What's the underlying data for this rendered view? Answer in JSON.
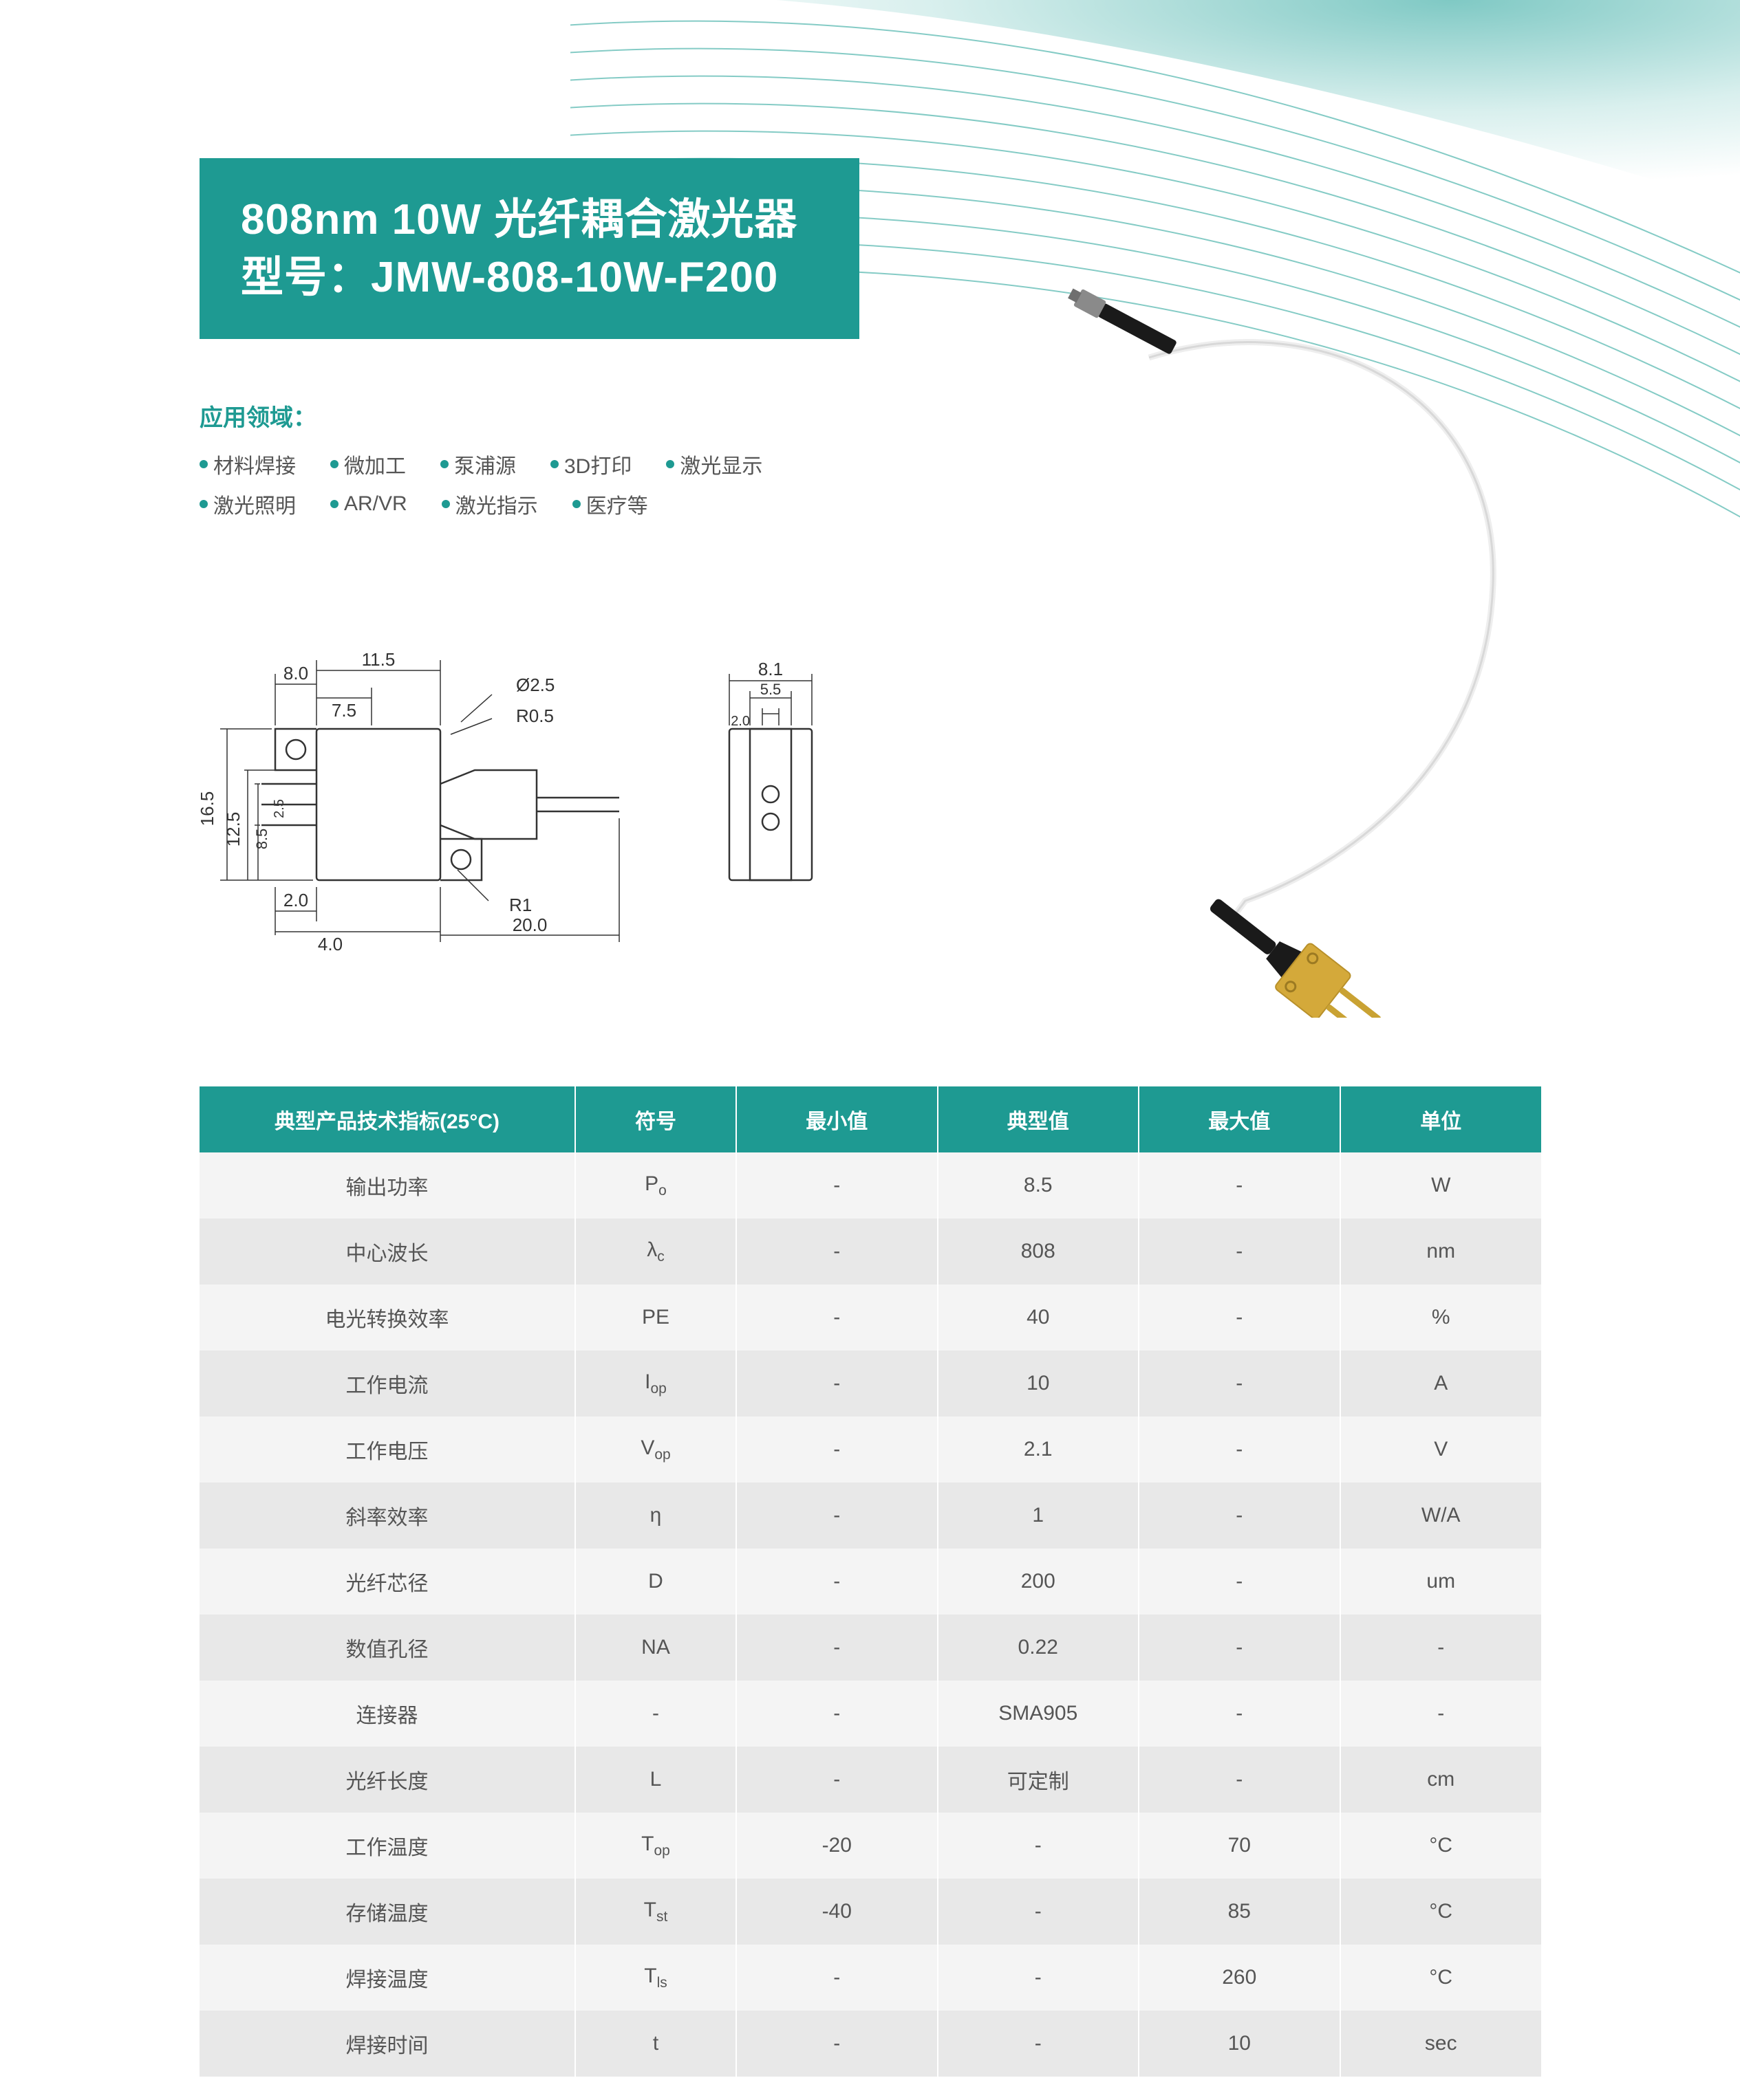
{
  "colors": {
    "brand": "#1e9a92",
    "bg_gradient_inner": "#2aa59d",
    "bg_gradient_outer": "#e8f5f4",
    "curve_line": "#6fc2bc",
    "text_body": "#555555",
    "row_odd": "#f4f4f4",
    "row_even": "#e8e8e8",
    "white": "#ffffff"
  },
  "title": {
    "line1": "808nm 10W 光纤耦合激光器",
    "line2": "型号：JMW-808-10W-F200"
  },
  "applications": {
    "heading": "应用领域：",
    "row1": [
      "材料焊接",
      "微加工",
      "泵浦源",
      "3D打印",
      "激光显示"
    ],
    "row2": [
      "激光照明",
      "AR/VR",
      "激光指示",
      "医疗等"
    ]
  },
  "diagram": {
    "dims": {
      "w1": "8.0",
      "w2": "11.5",
      "w3": "7.5",
      "d1": "Ø2.5",
      "r1": "R0.5",
      "h1": "16.5",
      "h2": "12.5",
      "h3": "8.5",
      "h4": "2.5",
      "b1": "2.0",
      "b2": "4.0",
      "len": "20.0",
      "r2": "R1",
      "side_w1": "8.1",
      "side_w2": "5.5",
      "side_w3": "2.0"
    },
    "line_color": "#333333",
    "fontsize_pt": 22
  },
  "product_image": {
    "description": "fiber-coupled laser module with white fiber loop, black SMA connector, gold base with two pins",
    "fiber_color": "#f2f2f2",
    "connector_color": "#1a1a1a",
    "ferrule_color": "#8a8a8a",
    "base_color": "#d4a93a",
    "pin_color": "#c9a233"
  },
  "table": {
    "headers": [
      "典型产品技术指标(25°C)",
      "符号",
      "最小值",
      "典型值",
      "最大值",
      "单位"
    ],
    "rows": [
      {
        "name": "输出功率",
        "symbol_html": "P<span class='sub'>o</span>",
        "min": "-",
        "typ": "8.5",
        "max": "-",
        "unit": "W"
      },
      {
        "name": "中心波长",
        "symbol_html": "λ<span class='sub'>c</span>",
        "min": "-",
        "typ": "808",
        "max": "-",
        "unit": "nm"
      },
      {
        "name": "电光转换效率",
        "symbol_html": "PE",
        "min": "-",
        "typ": "40",
        "max": "-",
        "unit": "%"
      },
      {
        "name": "工作电流",
        "symbol_html": "I<span class='sub'>op</span>",
        "min": "-",
        "typ": "10",
        "max": "-",
        "unit": "A"
      },
      {
        "name": "工作电压",
        "symbol_html": "V<span class='sub'>op</span>",
        "min": "-",
        "typ": "2.1",
        "max": "-",
        "unit": "V"
      },
      {
        "name": "斜率效率",
        "symbol_html": "η",
        "min": "-",
        "typ": "1",
        "max": "-",
        "unit": "W/A"
      },
      {
        "name": "光纤芯径",
        "symbol_html": "D",
        "min": "-",
        "typ": "200",
        "max": "-",
        "unit": "um"
      },
      {
        "name": "数值孔径",
        "symbol_html": "NA",
        "min": "-",
        "typ": "0.22",
        "max": "-",
        "unit": "-"
      },
      {
        "name": "连接器",
        "symbol_html": "-",
        "min": "-",
        "typ": "SMA905",
        "max": "-",
        "unit": "-"
      },
      {
        "name": "光纤长度",
        "symbol_html": "L",
        "min": "-",
        "typ": "可定制",
        "max": "-",
        "unit": "cm"
      },
      {
        "name": "工作温度",
        "symbol_html": "T<span class='sub'>op</span>",
        "min": "-20",
        "typ": "-",
        "max": "70",
        "unit": "°C"
      },
      {
        "name": "存储温度",
        "symbol_html": "T<span class='sub'>st</span>",
        "min": "-40",
        "typ": "-",
        "max": "85",
        "unit": "°C"
      },
      {
        "name": "焊接温度",
        "symbol_html": "T<span class='sub'>ls</span>",
        "min": "-",
        "typ": "-",
        "max": "260",
        "unit": "°C"
      },
      {
        "name": "焊接时间",
        "symbol_html": "t",
        "min": "-",
        "typ": "-",
        "max": "10",
        "unit": "sec"
      }
    ]
  }
}
